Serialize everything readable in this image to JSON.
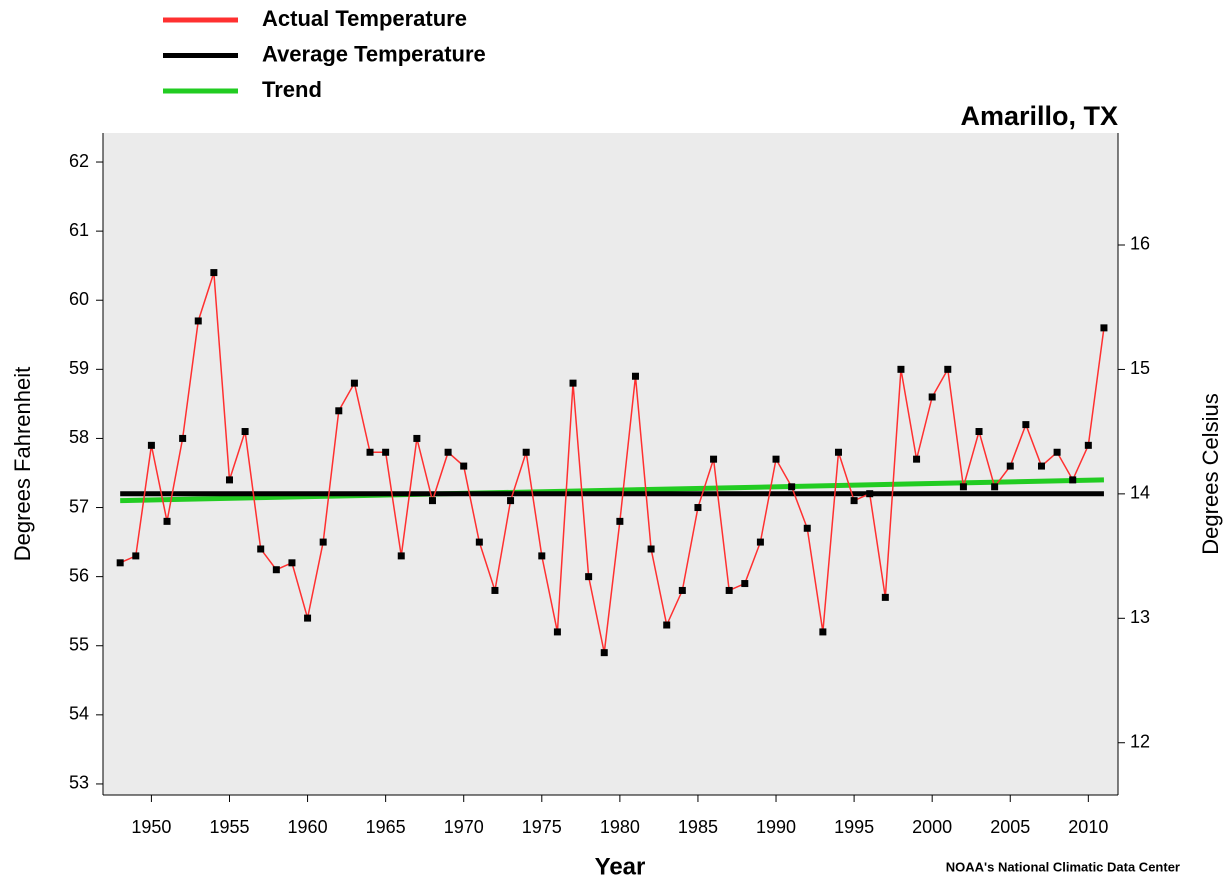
{
  "chart_data": {
    "type": "line",
    "title": "Amarillo, TX",
    "xlabel": "Year",
    "ylabel": "Degrees Fahrenheit",
    "y2label": "Degrees Celsius",
    "source": "NOAA's National Climatic Data Center",
    "series": [
      {
        "name": "Actual Temperature",
        "color": "#ff3030",
        "markers": true,
        "x": [
          1948,
          1949,
          1950,
          1951,
          1952,
          1953,
          1954,
          1955,
          1956,
          1957,
          1958,
          1959,
          1960,
          1961,
          1962,
          1963,
          1964,
          1965,
          1966,
          1967,
          1968,
          1969,
          1970,
          1971,
          1972,
          1973,
          1974,
          1975,
          1976,
          1977,
          1978,
          1979,
          1980,
          1981,
          1982,
          1983,
          1984,
          1985,
          1986,
          1987,
          1988,
          1989,
          1990,
          1991,
          1992,
          1993,
          1994,
          1995,
          1996,
          1997,
          1998,
          1999,
          2000,
          2001,
          2002,
          2003,
          2004,
          2005,
          2006,
          2007,
          2008,
          2009,
          2010,
          2011
        ],
        "values": [
          56.2,
          56.3,
          57.9,
          56.8,
          58.0,
          59.7,
          60.4,
          57.4,
          58.1,
          56.4,
          56.1,
          56.2,
          55.4,
          56.5,
          58.4,
          58.8,
          57.8,
          57.8,
          56.3,
          58.0,
          57.1,
          57.8,
          57.6,
          56.5,
          55.8,
          57.1,
          57.8,
          56.3,
          55.2,
          58.8,
          56.0,
          54.9,
          56.8,
          58.9,
          56.4,
          55.3,
          55.8,
          57.0,
          57.7,
          55.8,
          55.9,
          56.5,
          57.7,
          57.3,
          56.7,
          55.2,
          57.8,
          57.1,
          57.2,
          55.7,
          59.0,
          57.7,
          58.6,
          59.0,
          57.3,
          58.1,
          57.3,
          57.6,
          58.2,
          57.6,
          57.8,
          57.4,
          57.9,
          59.6
        ]
      },
      {
        "name": "Average Temperature",
        "color": "#000000",
        "markers": false,
        "x": [
          1948,
          2011
        ],
        "values": [
          57.2,
          57.2
        ]
      },
      {
        "name": "Trend",
        "color": "#22cc22",
        "markers": false,
        "x": [
          1948,
          2011
        ],
        "values": [
          57.1,
          57.4
        ]
      }
    ],
    "xlim": [
      1946.9,
      2011.9
    ],
    "xticks": [
      1950,
      1955,
      1960,
      1965,
      1970,
      1975,
      1980,
      1985,
      1990,
      1995,
      2000,
      2005,
      2010
    ],
    "ylim": [
      52.84,
      62.42
    ],
    "yticks": [
      53,
      54,
      55,
      56,
      57,
      58,
      59,
      60,
      61,
      62
    ],
    "y2lim": [
      11.58,
      16.9
    ],
    "y2ticks": [
      12,
      13,
      14,
      15,
      16
    ],
    "legend": "top-left"
  }
}
